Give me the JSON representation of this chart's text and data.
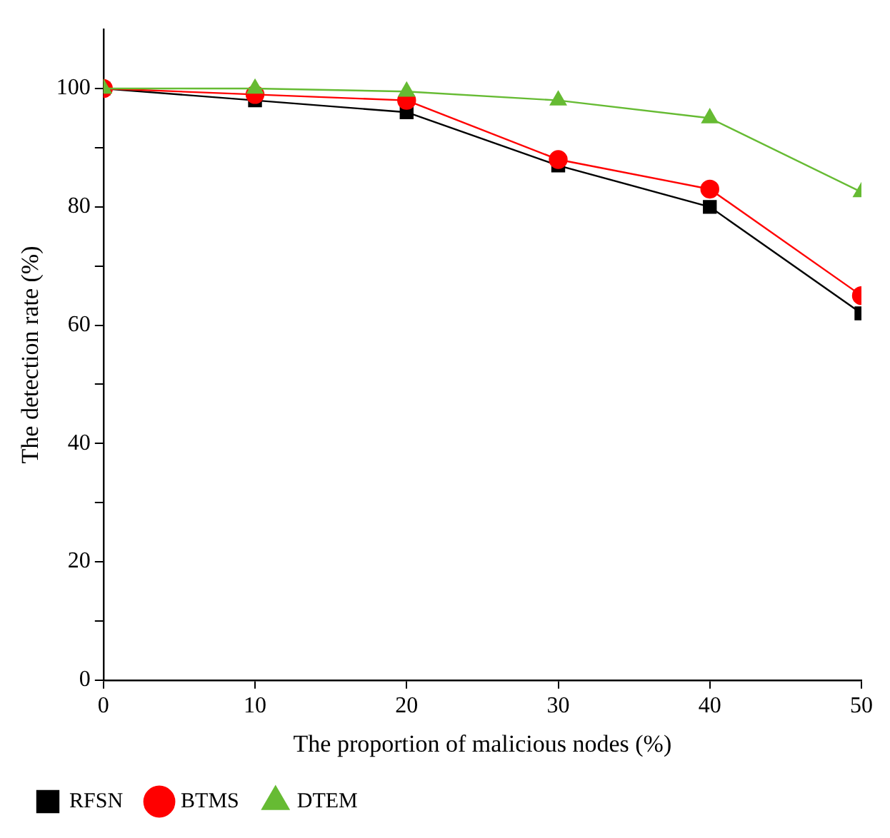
{
  "chart_data": {
    "type": "line",
    "xlabel": "The proportion of malicious nodes (%)",
    "ylabel": "The detection rate (%)",
    "x": [
      0,
      10,
      20,
      30,
      40,
      50
    ],
    "series": [
      {
        "name": "RFSN",
        "color": "#000000",
        "marker": "square",
        "values": [
          100,
          98,
          96,
          87,
          80,
          62
        ]
      },
      {
        "name": "BTMS",
        "color": "#ff0000",
        "marker": "circle",
        "values": [
          100,
          99,
          98,
          88,
          83,
          65
        ]
      },
      {
        "name": "DTEM",
        "color": "#66bb33",
        "marker": "triangle",
        "values": [
          100,
          100,
          99.5,
          98,
          95,
          82.5
        ]
      }
    ],
    "xlim": [
      0,
      50
    ],
    "xticks": [
      0,
      10,
      20,
      30,
      40,
      50
    ],
    "ylim": [
      0,
      110
    ],
    "yticks": [
      0,
      {
        "value": 10,
        "label": null
      },
      20,
      {
        "value": 30,
        "label": null
      },
      40,
      {
        "value": 50,
        "label": null
      },
      60,
      {
        "value": 70,
        "label": null
      },
      80,
      {
        "value": 90,
        "label": null
      },
      100
    ],
    "grid": false,
    "legend": "bottom",
    "line_style": "solid"
  }
}
